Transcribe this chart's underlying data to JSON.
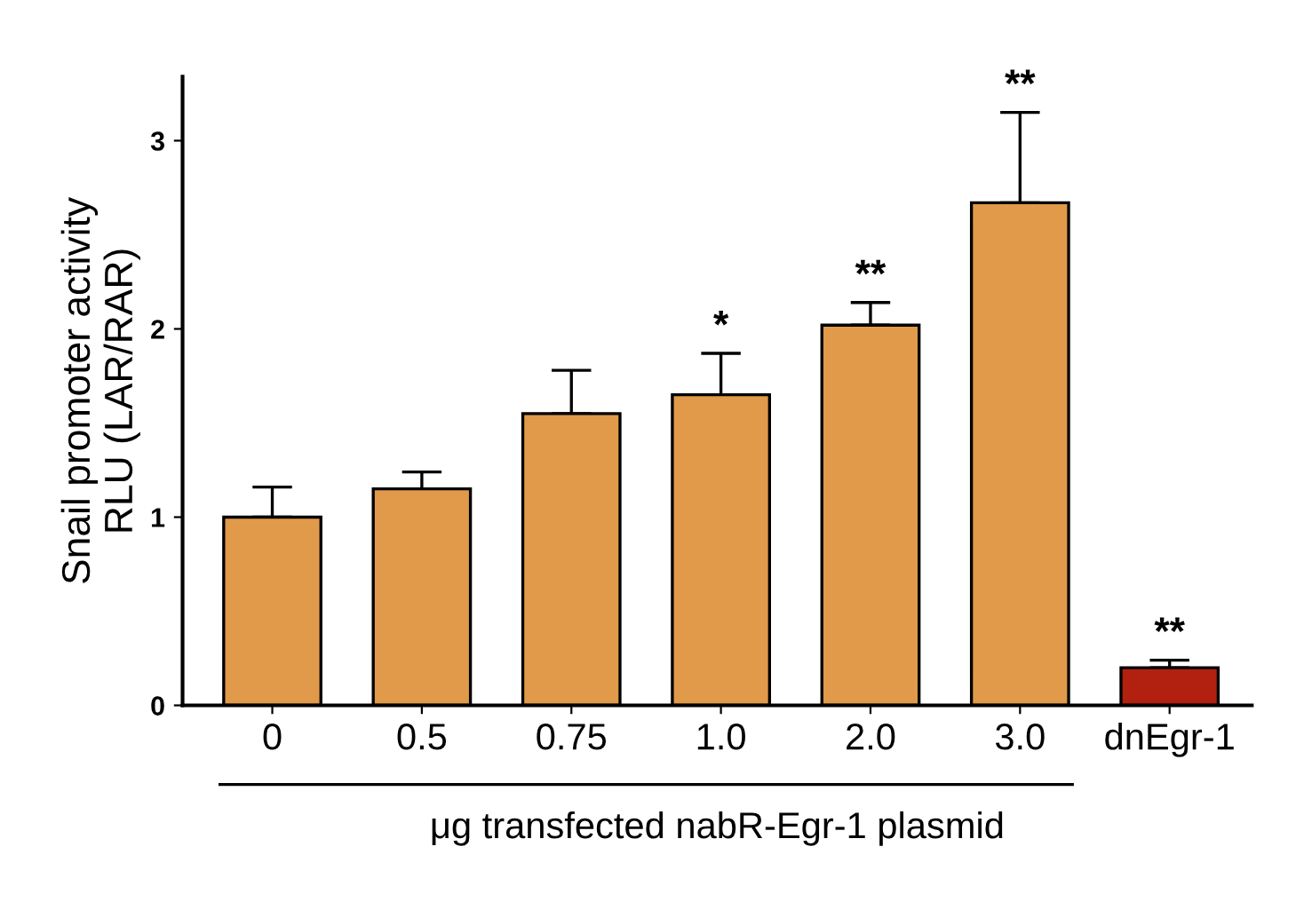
{
  "chart_data": {
    "type": "bar",
    "xlabel": "μg transfected nabR-Egr-1 plasmid",
    "ylabel": "Snail promoter activity\nRLU (LAR/RAR)",
    "categories": [
      "0",
      "0.5",
      "0.75",
      "1.0",
      "2.0",
      "3.0",
      "dnEgr-1"
    ],
    "values": [
      1.0,
      1.15,
      1.55,
      1.65,
      2.02,
      2.67,
      0.2
    ],
    "errors": [
      0.16,
      0.09,
      0.23,
      0.22,
      0.12,
      0.48,
      0.04
    ],
    "colors": [
      "#e09a4a",
      "#e09a4a",
      "#e09a4a",
      "#e09a4a",
      "#e09a4a",
      "#e09a4a",
      "#b22010"
    ],
    "ylim": [
      0,
      3.34
    ],
    "yticks": [
      0,
      1,
      2,
      3
    ],
    "grid": false,
    "legend": false,
    "annotations": [
      {
        "text": "*",
        "x": "1.0",
        "y": 1.87
      },
      {
        "text": "**",
        "x": "2.0",
        "y": 2.14
      },
      {
        "text": "**",
        "x": "3.0",
        "y": 3.15
      },
      {
        "text": "**",
        "x": "dnEgr-1",
        "y": 0.24
      }
    ]
  }
}
